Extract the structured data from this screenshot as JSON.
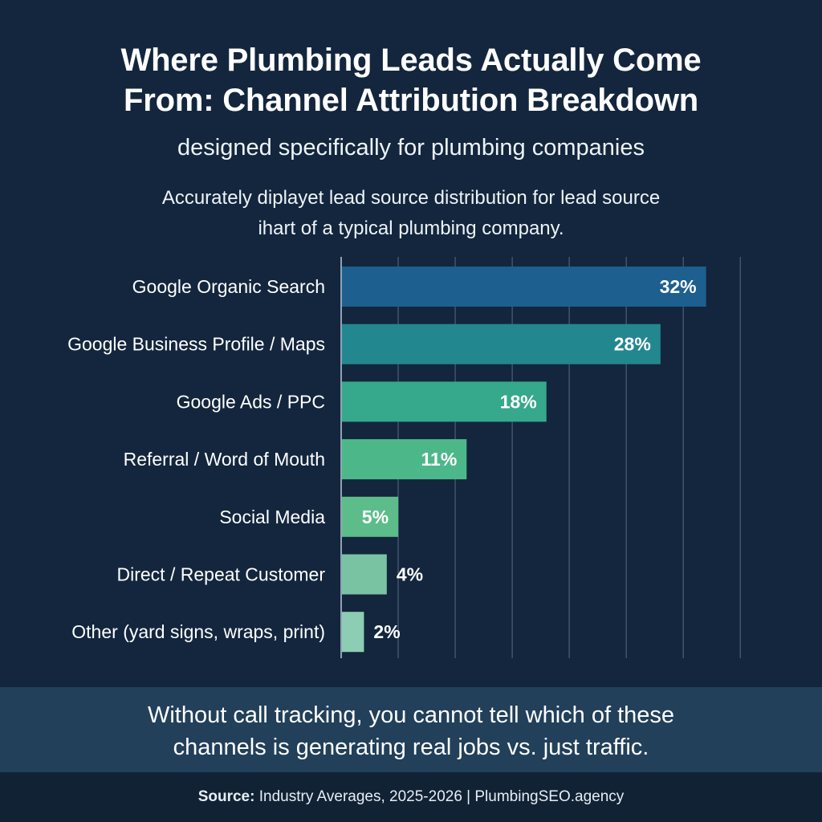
{
  "header": {
    "title_lines": [
      "Where Plumbing Leads Actually Come",
      "From: Channel Attribution Breakdown"
    ],
    "subtitle": "designed specifically for plumbing companies",
    "description_lines": [
      "Accurately diplayet lead source distribution for lead source",
      "ihart of a typical plumbing company."
    ]
  },
  "chart_data": {
    "type": "bar",
    "orientation": "horizontal",
    "categories": [
      "Google Organic Search",
      "Google Business Profile / Maps",
      "Google Ads / PPC",
      "Referral / Word of Mouth",
      "Social Media",
      "Direct / Repeat Customer",
      "Other (yard signs, wraps, print)"
    ],
    "values": [
      32,
      28,
      18,
      11,
      5,
      4,
      2
    ],
    "data_labels": [
      "32%",
      "28%",
      "18%",
      "11%",
      "5%",
      "4%",
      "2%"
    ],
    "bar_colors": [
      "#1d5f8e",
      "#238790",
      "#36a88b",
      "#4cb88a",
      "#5dbd8a",
      "#79c3a2",
      "#8ccdb4"
    ],
    "xlim": [
      0,
      38.5
    ],
    "grid": true,
    "title": "",
    "xlabel": "",
    "ylabel": ""
  },
  "banner": {
    "lines": [
      "Without call tracking, you cannot tell which of these",
      "channels is generating real jobs vs. just traffic."
    ]
  },
  "footer": {
    "source_label": "Source:",
    "source_text": " Industry Averages, 2025-2026 | PlumbingSEO.agency"
  },
  "colors": {
    "background": "#13263d",
    "banner_background": "#22405a",
    "gridline": "#3f5569"
  }
}
